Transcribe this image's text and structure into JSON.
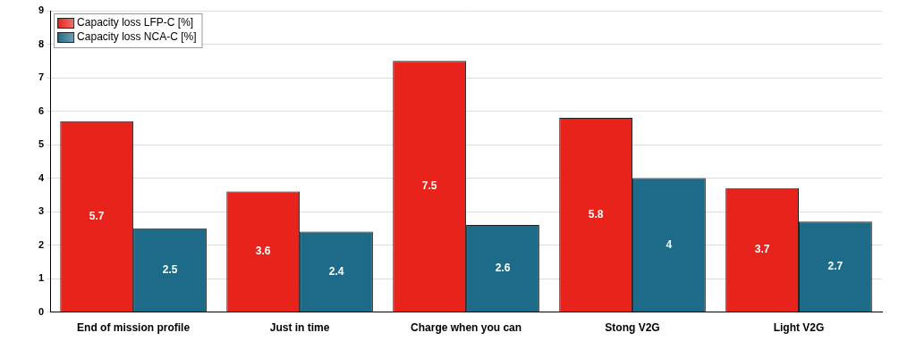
{
  "chart_data": {
    "type": "bar",
    "categories": [
      "End of mission profile",
      "Just in time",
      "Charge when you can",
      "Stong V2G",
      "Light V2G"
    ],
    "series": [
      {
        "name": "Capacity loss LFP-C [%]",
        "color": "#e8231b",
        "values": [
          5.7,
          3.6,
          7.5,
          5.8,
          3.7
        ]
      },
      {
        "name": "Capacity loss NCA-C [%]",
        "color": "#1d6b88",
        "values": [
          2.5,
          2.4,
          2.6,
          4,
          2.7
        ]
      }
    ],
    "ylim": [
      0,
      9
    ],
    "yticks": [
      0,
      1,
      2,
      3,
      4,
      5,
      6,
      7,
      8,
      9
    ],
    "grid": true,
    "legend": "top-left",
    "data_labels": true
  }
}
